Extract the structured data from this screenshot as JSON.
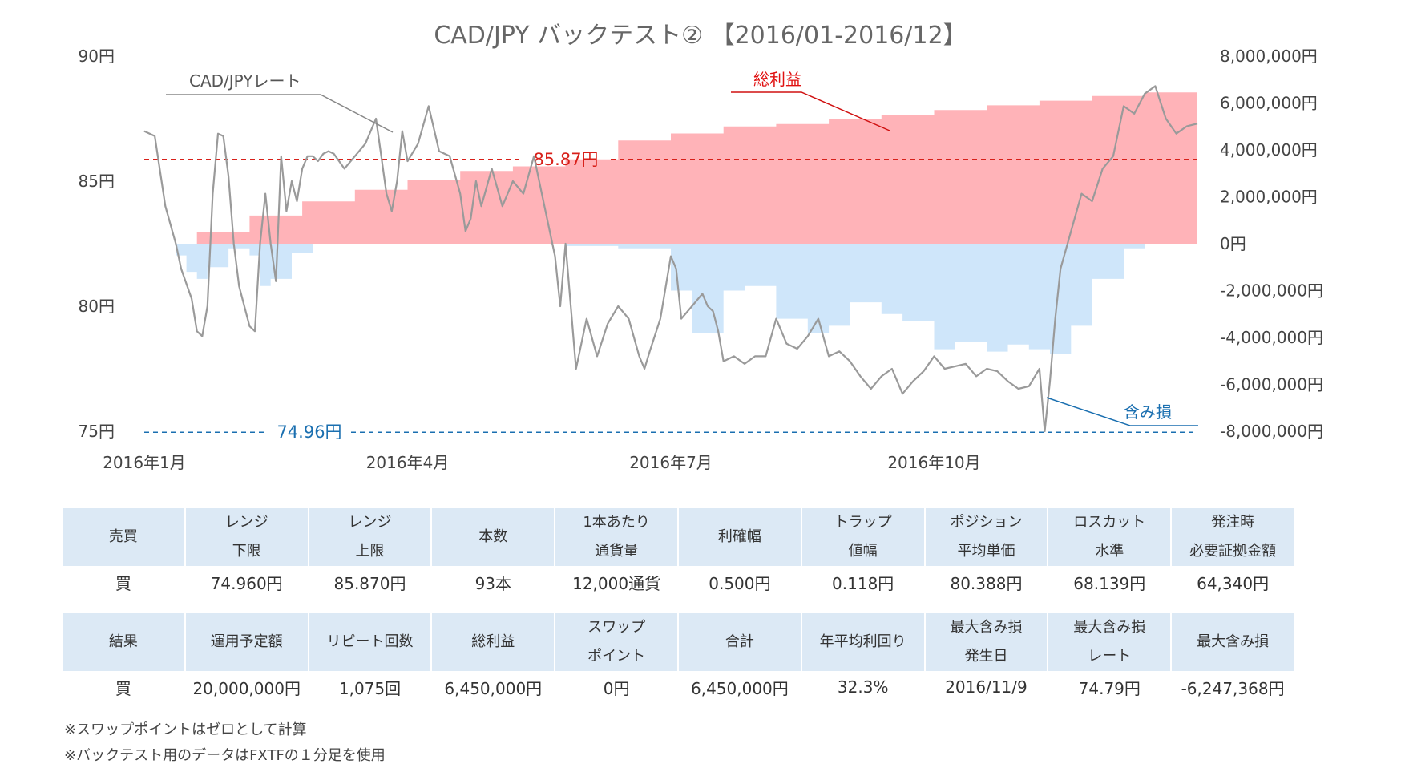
{
  "chart_data": {
    "type": "line",
    "title": "CAD/JPY  バックテスト②  【2016/01-2016/12】",
    "x_ticks": [
      "2016年1月",
      "2016年4月",
      "2016年7月",
      "2016年10月"
    ],
    "y_left": {
      "ticks": [
        "90円",
        "85円",
        "80円",
        "75円"
      ],
      "range": [
        75,
        90
      ],
      "unit": "円"
    },
    "y_right": {
      "ticks": [
        "8,000,000円",
        "6,000,000円",
        "4,000,000円",
        "2,000,000円",
        "0円",
        "-2,000,000円",
        "-4,000,000円",
        "-6,000,000円",
        "-8,000,000円"
      ],
      "range": [
        -8000000,
        8000000
      ],
      "unit": "円"
    },
    "reference_lines": [
      {
        "label": "85.87円",
        "value": 85.87,
        "color": "#d8201a"
      },
      {
        "label": "74.96円",
        "value": 74.96,
        "color": "#1a6fb0"
      }
    ],
    "annotations": {
      "rate": "CAD/JPYレート",
      "profit": "総利益",
      "unrealized": "含み損"
    },
    "colors": {
      "rate": "#9a9a9a",
      "profit": "#ffb3b8",
      "unrealized": "#cfe6fa"
    },
    "series": [
      {
        "name": "CAD/JPYレート",
        "axis": "left",
        "type": "line",
        "x": [
          0,
          0.01,
          0.02,
          0.03,
          0.035,
          0.045,
          0.05,
          0.055,
          0.06,
          0.065,
          0.07,
          0.075,
          0.08,
          0.085,
          0.09,
          0.1,
          0.105,
          0.11,
          0.115,
          0.12,
          0.125,
          0.13,
          0.135,
          0.14,
          0.145,
          0.15,
          0.155,
          0.16,
          0.165,
          0.17,
          0.175,
          0.18,
          0.19,
          0.2,
          0.21,
          0.22,
          0.225,
          0.23,
          0.235,
          0.24,
          0.245,
          0.25,
          0.26,
          0.27,
          0.28,
          0.29,
          0.3,
          0.305,
          0.31,
          0.315,
          0.32,
          0.33,
          0.34,
          0.35,
          0.36,
          0.37,
          0.38,
          0.39,
          0.395,
          0.4,
          0.41,
          0.42,
          0.43,
          0.44,
          0.45,
          0.46,
          0.47,
          0.475,
          0.48,
          0.49,
          0.5,
          0.505,
          0.51,
          0.52,
          0.53,
          0.535,
          0.54,
          0.545,
          0.55,
          0.56,
          0.57,
          0.58,
          0.59,
          0.6,
          0.61,
          0.62,
          0.63,
          0.64,
          0.65,
          0.66,
          0.67,
          0.68,
          0.69,
          0.7,
          0.71,
          0.72,
          0.73,
          0.74,
          0.75,
          0.76,
          0.77,
          0.78,
          0.79,
          0.8,
          0.81,
          0.82,
          0.83,
          0.84,
          0.85,
          0.855,
          0.86,
          0.865,
          0.87,
          0.88,
          0.89,
          0.9,
          0.91,
          0.92,
          0.93,
          0.94,
          0.95,
          0.96,
          0.97,
          0.98,
          0.99,
          1.0
        ],
        "y": [
          87.0,
          86.8,
          84.0,
          82.5,
          81.5,
          80.3,
          79.0,
          78.8,
          80.0,
          84.5,
          86.9,
          86.8,
          85.2,
          82.5,
          80.8,
          79.2,
          79.0,
          82.5,
          84.5,
          82.5,
          81.0,
          86.0,
          83.8,
          85.0,
          84.2,
          85.5,
          86.0,
          86.0,
          85.8,
          86.1,
          86.2,
          86.1,
          85.5,
          86.0,
          86.5,
          87.5,
          86.0,
          84.5,
          83.8,
          85.0,
          87.0,
          85.8,
          86.5,
          88.0,
          86.2,
          86.0,
          84.5,
          83.0,
          83.5,
          85.0,
          84.0,
          85.5,
          84.0,
          85.0,
          84.5,
          86.0,
          84.0,
          82.0,
          80.0,
          82.5,
          77.5,
          79.5,
          78.0,
          79.3,
          80.0,
          79.5,
          78.0,
          77.5,
          78.2,
          79.5,
          82.0,
          81.5,
          79.5,
          80.0,
          80.5,
          80.0,
          79.8,
          79.0,
          77.8,
          78.0,
          77.7,
          78.0,
          78.0,
          79.5,
          78.5,
          78.3,
          78.8,
          79.5,
          78.0,
          78.2,
          77.8,
          77.2,
          76.7,
          77.2,
          77.5,
          76.5,
          77.0,
          77.4,
          78.0,
          77.5,
          77.6,
          77.7,
          77.2,
          77.5,
          77.4,
          77.0,
          76.7,
          76.8,
          77.5,
          75.0,
          77.0,
          79.5,
          81.5,
          83.0,
          84.5,
          84.2,
          85.5,
          86.0,
          88.0,
          87.7,
          88.5,
          88.8,
          87.5,
          86.9,
          87.2,
          87.3
        ],
        "color": "#9a9a9a"
      },
      {
        "name": "総利益",
        "axis": "right",
        "type": "area",
        "x": [
          0,
          0.05,
          0.1,
          0.15,
          0.2,
          0.25,
          0.3,
          0.35,
          0.4,
          0.45,
          0.5,
          0.55,
          0.6,
          0.65,
          0.7,
          0.75,
          0.8,
          0.85,
          0.9,
          0.95,
          1.0
        ],
        "y": [
          0,
          500000,
          1200000,
          1800000,
          2300000,
          2700000,
          3100000,
          3300000,
          3600000,
          4400000,
          4700000,
          5000000,
          5100000,
          5300000,
          5500000,
          5700000,
          5900000,
          6100000,
          6300000,
          6450000,
          6450000
        ],
        "color": "#ffb3b8"
      },
      {
        "name": "含み損",
        "axis": "right",
        "type": "area",
        "x": [
          0,
          0.03,
          0.04,
          0.05,
          0.06,
          0.08,
          0.1,
          0.11,
          0.12,
          0.14,
          0.16,
          0.2,
          0.25,
          0.3,
          0.35,
          0.4,
          0.45,
          0.5,
          0.52,
          0.55,
          0.57,
          0.6,
          0.63,
          0.65,
          0.67,
          0.7,
          0.72,
          0.75,
          0.77,
          0.8,
          0.82,
          0.84,
          0.86,
          0.88,
          0.9,
          0.93,
          0.95,
          1.0
        ],
        "y": [
          0,
          -500000,
          -1200000,
          -1500000,
          -1000000,
          -200000,
          -500000,
          -1800000,
          -1500000,
          -400000,
          0,
          0,
          0,
          0,
          0,
          -100000,
          -200000,
          -2000000,
          -3800000,
          -2000000,
          -1800000,
          -3200000,
          -3800000,
          -3500000,
          -2500000,
          -3000000,
          -3300000,
          -4500000,
          -4200000,
          -4600000,
          -4300000,
          -4500000,
          -4700000,
          -3500000,
          -1500000,
          -200000,
          0,
          0
        ],
        "color": "#cfe6fa"
      }
    ]
  },
  "table1": {
    "headers": [
      [
        "売買"
      ],
      [
        "レンジ",
        "下限"
      ],
      [
        "レンジ",
        "上限"
      ],
      [
        "本数"
      ],
      [
        "1本あたり",
        "通貨量"
      ],
      [
        "利確幅"
      ],
      [
        "トラップ",
        "値幅"
      ],
      [
        "ポジション",
        "平均単価"
      ],
      [
        "ロスカット",
        "水準"
      ],
      [
        "発注時",
        "必要証拠金額"
      ]
    ],
    "values": [
      "買",
      "74.960円",
      "85.870円",
      "93本",
      "12,000通貨",
      "0.500円",
      "0.118円",
      "80.388円",
      "68.139円",
      "64,340円"
    ]
  },
  "table2": {
    "headers": [
      [
        "結果"
      ],
      [
        "運用予定額"
      ],
      [
        "リピート回数"
      ],
      [
        "総利益"
      ],
      [
        "スワップ",
        "ポイント"
      ],
      [
        "合計"
      ],
      [
        "年平均利回り"
      ],
      [
        "最大含み損",
        "発生日"
      ],
      [
        "最大含み損",
        "レート"
      ],
      [
        "最大含み損"
      ]
    ],
    "values": [
      "買",
      "20,000,000円",
      "1,075回",
      "6,450,000円",
      "0円",
      "6,450,000円",
      "32.3%",
      "2016/11/9",
      "74.79円",
      "-6,247,368円"
    ]
  },
  "notes": [
    "※スワップポイントはゼロとして計算",
    "※バックテスト用のデータはFXTFの１分足を使用"
  ]
}
